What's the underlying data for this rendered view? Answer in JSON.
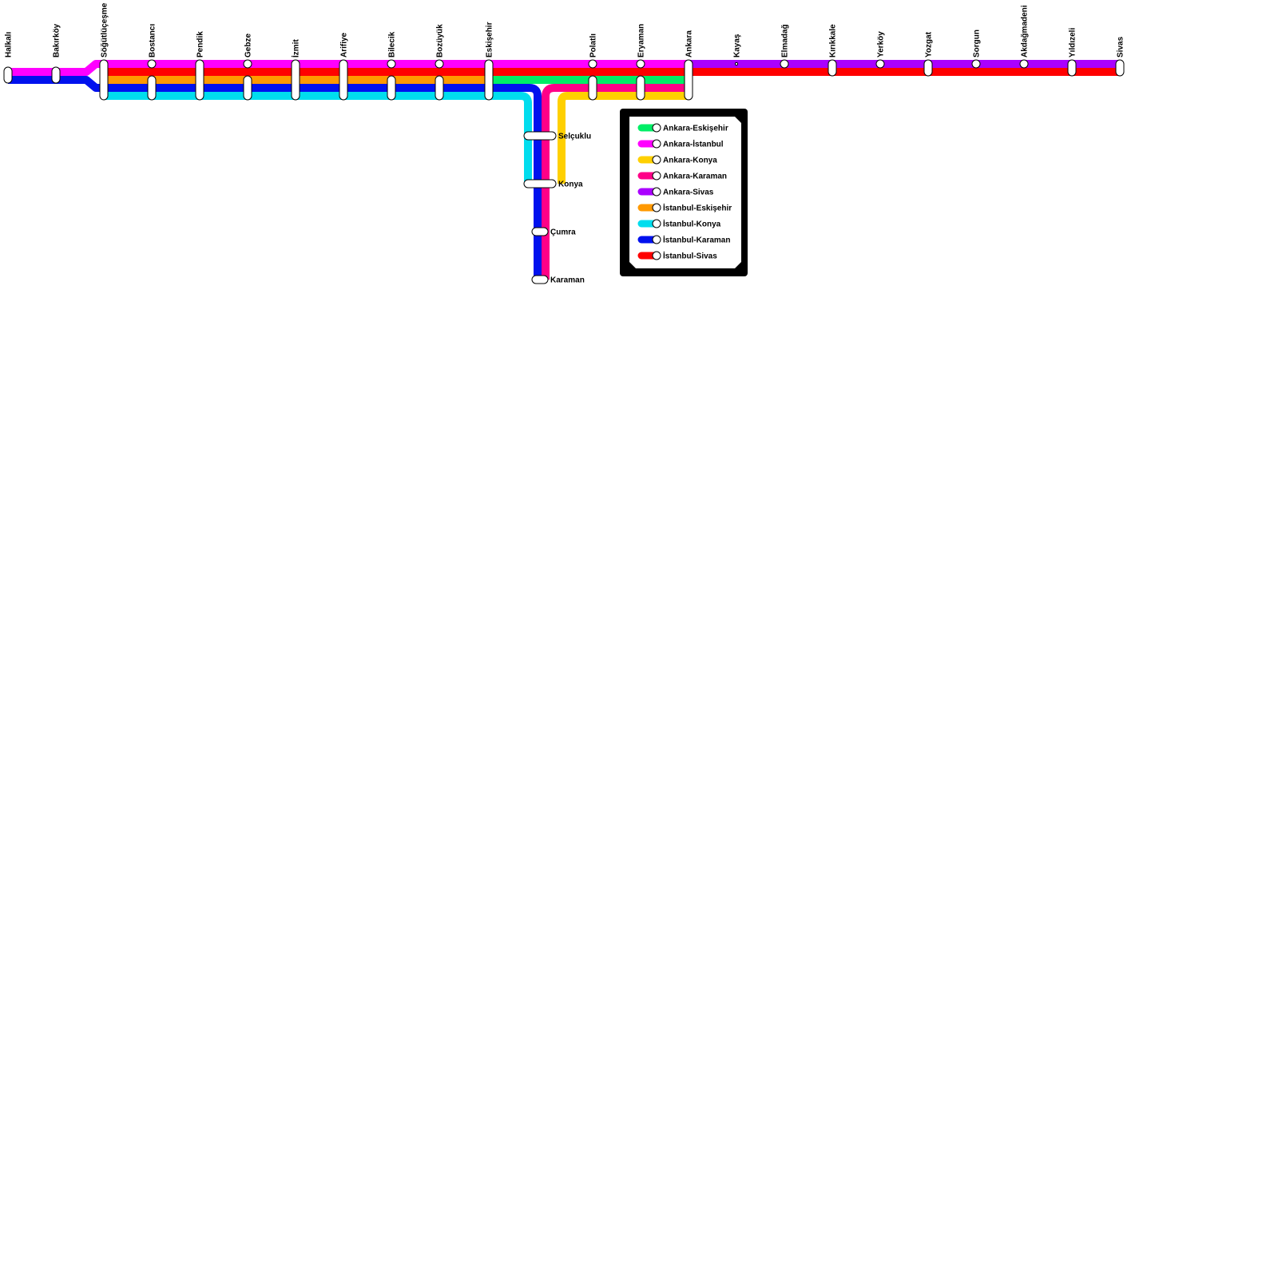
{
  "lines": [
    {
      "id": "ankara-eskisehir",
      "name": "Ankara-Eskişehir",
      "color": "#00ee66"
    },
    {
      "id": "ankara-istanbul",
      "name": "Ankara-İstanbul",
      "color": "#ff00ff"
    },
    {
      "id": "ankara-konya",
      "name": "Ankara-Konya",
      "color": "#ffd000"
    },
    {
      "id": "ankara-karaman",
      "name": "Ankara-Karaman",
      "color": "#ff0088"
    },
    {
      "id": "ankara-sivas",
      "name": "Ankara-Sivas",
      "color": "#aa00ff"
    },
    {
      "id": "istanbul-eskisehir",
      "name": "İstanbul-Eskişehir",
      "color": "#ff9900"
    },
    {
      "id": "istanbul-konya",
      "name": "İstanbul-Konya",
      "color": "#00ddee"
    },
    {
      "id": "istanbul-karaman",
      "name": "İstanbul-Karaman",
      "color": "#0011ee"
    },
    {
      "id": "istanbul-sivas",
      "name": "İstanbul-Sivas",
      "color": "#ff0000"
    }
  ],
  "stations_main": [
    "Halkalı",
    "Bakırköy",
    "Söğütlüçeşme",
    "Bostancı",
    "Pendik",
    "Gebze",
    "İzmit",
    "Arifiye",
    "Bilecik",
    "Bozüyük",
    "Eskişehir",
    "Polatlı",
    "Eryaman",
    "Ankara",
    "Kayaş",
    "Elmadağ",
    "Kırıkkale",
    "Yerköy",
    "Yozgat",
    "Sorgun",
    "Akdağmadeni",
    "Yıldızeli",
    "Sivas"
  ],
  "stations_south": [
    "Selçuklu",
    "Konya",
    "Çumra",
    "Karaman"
  ]
}
